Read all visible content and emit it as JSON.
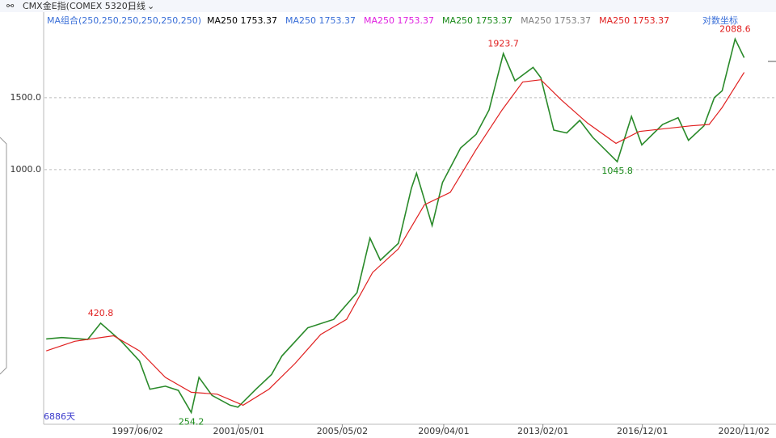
{
  "chart_data": {
    "type": "line",
    "title": "CMX金E指(COMEX 5320)",
    "period": "日线",
    "indicator": "MA组合(250,250,250,250,250,250)",
    "ma_legend": [
      {
        "name": "MA250",
        "value": 1753.37,
        "color": "#000000"
      },
      {
        "name": "MA250",
        "value": 1753.37,
        "color": "#3a6fd8"
      },
      {
        "name": "MA250",
        "value": 1753.37,
        "color": "#e020e0"
      },
      {
        "name": "MA250",
        "value": 1753.37,
        "color": "#1a8a1a"
      },
      {
        "name": "MA250",
        "value": 1753.37,
        "color": "#808080"
      },
      {
        "name": "MA250",
        "value": 1753.37,
        "color": "#e02020"
      }
    ],
    "scale_label": "对数坐标",
    "bar_count_label": "6886天",
    "log_scale": true,
    "grid": true,
    "xlim": [
      1993.83,
      2021.3
    ],
    "ylim": [
      238,
      2270
    ],
    "yticks": [
      {
        "value": 1500,
        "label": "1500.0"
      },
      {
        "value": 1000,
        "label": "1000.0"
      }
    ],
    "xticks": [
      {
        "value": 1997.42,
        "label": "1997/06/02"
      },
      {
        "value": 2001.33,
        "label": "2001/05/01"
      },
      {
        "value": 2005.33,
        "label": "2005/05/02"
      },
      {
        "value": 2009.25,
        "label": "2009/04/01"
      },
      {
        "value": 2013.08,
        "label": "2013/02/01"
      },
      {
        "value": 2016.92,
        "label": "2016/12/01"
      },
      {
        "value": 2020.84,
        "label": "2020/11/02"
      }
    ],
    "series": [
      {
        "color": "#2a8a2a",
        "x": [
          1993.9,
          1994.5,
          1995.5,
          1996.0,
          1996.8,
          1997.5,
          1997.9,
          1998.5,
          1999.0,
          1999.5,
          1999.8,
          2000.3,
          2001.0,
          2001.3,
          2002.0,
          2002.6,
          2003.0,
          2004.0,
          2005.0,
          2005.9,
          2006.4,
          2006.8,
          2007.5,
          2008.0,
          2008.2,
          2008.8,
          2009.2,
          2009.9,
          2010.5,
          2011.0,
          2011.55,
          2012.0,
          2012.7,
          2013.0,
          2013.5,
          2014.0,
          2014.5,
          2015.0,
          2015.95,
          2016.5,
          2016.9,
          2017.7,
          2018.3,
          2018.7,
          2019.3,
          2019.7,
          2020.0,
          2020.5,
          2020.85
        ],
        "values": [
          385,
          388,
          384,
          420.8,
          380,
          340,
          290,
          295,
          288,
          254.2,
          310,
          280,
          265,
          262,
          290,
          315,
          350,
          410,
          430,
          500,
          680,
          600,
          660,
          900,
          980,
          730,
          930,
          1130,
          1220,
          1400,
          1923.7,
          1650,
          1780,
          1680,
          1250,
          1230,
          1320,
          1200,
          1045.8,
          1350,
          1150,
          1290,
          1340,
          1180,
          1280,
          1500,
          1560,
          2088.6,
          1880
        ]
      },
      {
        "color": "#e02020",
        "x": [
          1993.9,
          1995.0,
          1996.5,
          1997.5,
          1998.5,
          1999.5,
          2000.5,
          2001.5,
          2002.5,
          2003.5,
          2004.5,
          2005.5,
          2006.5,
          2007.5,
          2008.5,
          2009.5,
          2010.5,
          2011.5,
          2012.3,
          2013.0,
          2013.8,
          2014.8,
          2015.9,
          2016.8,
          2017.8,
          2018.8,
          2019.5,
          2020.0,
          2020.85
        ],
        "values": [
          360,
          380,
          392,
          360,
          310,
          285,
          282,
          265,
          290,
          335,
          395,
          430,
          560,
          640,
          820,
          880,
          1120,
          1400,
          1640,
          1660,
          1480,
          1300,
          1160,
          1240,
          1260,
          1280,
          1290,
          1420,
          1730
        ]
      }
    ],
    "annotations": [
      {
        "x": 1996.0,
        "value": 420.8,
        "color": "#e02020",
        "position": "above"
      },
      {
        "x": 1999.5,
        "value": 254.2,
        "color": "#1a8a1a",
        "position": "below"
      },
      {
        "x": 2011.55,
        "value": 1923.7,
        "color": "#e02020",
        "position": "above"
      },
      {
        "x": 2015.95,
        "value": 1045.8,
        "color": "#1a8a1a",
        "position": "below"
      },
      {
        "x": 2020.5,
        "value": 2088.6,
        "color": "#e02020",
        "position": "above"
      }
    ]
  }
}
